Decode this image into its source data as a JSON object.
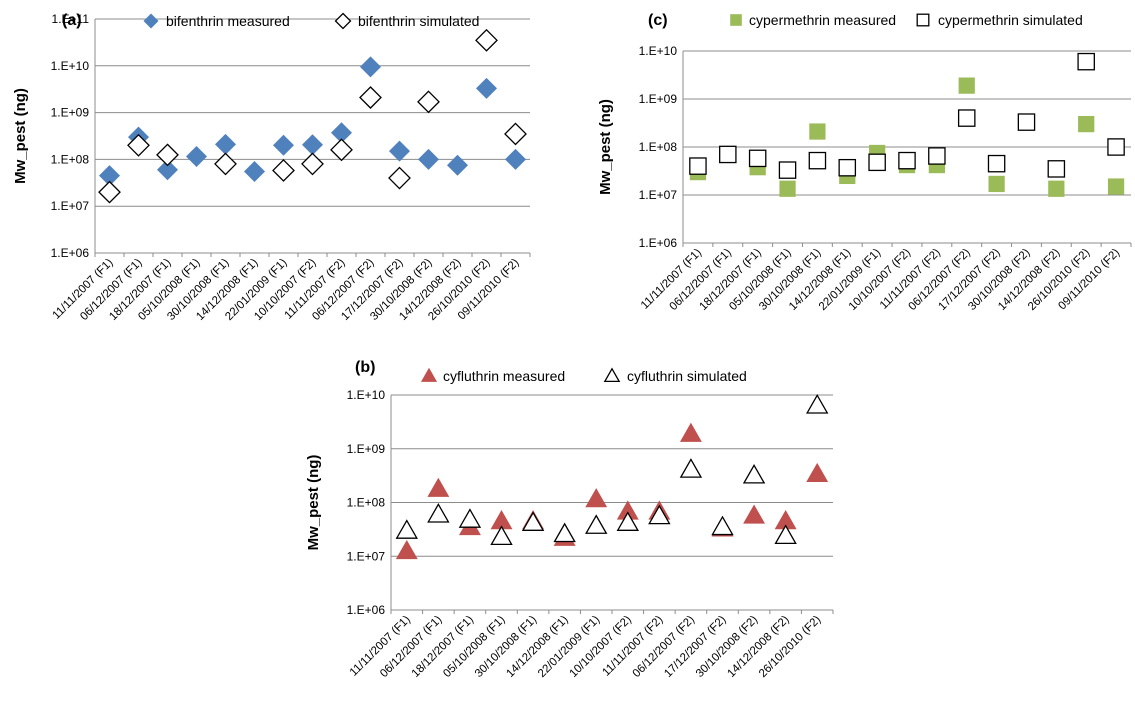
{
  "chart_data": [
    {
      "type": "scatter",
      "panel_label": "(a)",
      "ylabel": "Mw_pest (ng)",
      "yscale": "log",
      "ylim": [
        1000000,
        100000000000
      ],
      "yticks": [
        "1.E+06",
        "1.E+07",
        "1.E+08",
        "1.E+09",
        "1.E+10",
        "1.E+11"
      ],
      "grid": true,
      "legend_position": "top",
      "categories": [
        "11/11/2007 (F1)",
        "06/12/2007 (F1)",
        "18/12/2007 (F1)",
        "05/10/2008 (F1)",
        "30/10/2008 (F1)",
        "14/12/2008 (F1)",
        "22/01/2009 (F1)",
        "10/10/2007 (F2)",
        "11/11/2007 (F2)",
        "06/12/2007 (F2)",
        "17/12/2007 (F2)",
        "30/10/2008 (F2)",
        "14/12/2008 (F2)",
        "26/10/2010 (F2)",
        "09/11/2010 (F2)"
      ],
      "series": [
        {
          "name": "bifenthrin measured",
          "marker": "diamond-filled",
          "color": "#4f81bd",
          "values": [
            45000000,
            300000000,
            60000000,
            115000000,
            210000000,
            55000000,
            200000000,
            205000000,
            370000000,
            9500000000,
            150000000,
            100000000,
            75000000,
            3300000000,
            100000000
          ]
        },
        {
          "name": "bifenthrin simulated",
          "marker": "diamond-open",
          "color": "#000000",
          "values": [
            20000000,
            200000000,
            125000000,
            null,
            80000000,
            null,
            58000000,
            80000000,
            160000000,
            2100000000,
            40000000,
            1700000000,
            null,
            35000000000,
            350000000
          ]
        }
      ]
    },
    {
      "type": "scatter",
      "panel_label": "(c)",
      "ylabel": "Mw_pest (ng)",
      "yscale": "log",
      "ylim": [
        1000000,
        10000000000
      ],
      "yticks": [
        "1.E+06",
        "1.E+07",
        "1.E+08",
        "1.E+09",
        "1.E+10"
      ],
      "grid": true,
      "legend_position": "top",
      "categories": [
        "11/11/2007 (F1)",
        "06/12/2007 (F1)",
        "18/12/2007 (F1)",
        "05/10/2008 (F1)",
        "30/10/2008 (F1)",
        "14/12/2008 (F1)",
        "22/01/2009 (F1)",
        "10/10/2007 (F2)",
        "11/11/2007 (F2)",
        "06/12/2007 (F2)",
        "17/12/2007 (F2)",
        "30/10/2008 (F2)",
        "14/12/2008 (F2)",
        "26/10/2010 (F2)",
        "09/11/2010 (F2)"
      ],
      "series": [
        {
          "name": "cypermethrin measured",
          "marker": "square-filled",
          "color": "#9bbb59",
          "values": [
            30000000,
            70000000,
            38000000,
            13500000,
            210000000,
            25000000,
            75000000,
            42000000,
            42000000,
            1900000000,
            17000000,
            330000000,
            13500000,
            300000000,
            15000000
          ]
        },
        {
          "name": "cypermethrin simulated",
          "marker": "square-open",
          "color": "#000000",
          "values": [
            40000000,
            70000000,
            58000000,
            33000000,
            52000000,
            37000000,
            48000000,
            52000000,
            65000000,
            400000000,
            45000000,
            330000000,
            35000000,
            6000000000,
            100000000
          ]
        }
      ]
    },
    {
      "type": "scatter",
      "panel_label": "(b)",
      "ylabel": "Mw_pest (ng)",
      "yscale": "log",
      "ylim": [
        1000000,
        10000000000
      ],
      "yticks": [
        "1.E+06",
        "1.E+07",
        "1.E+08",
        "1.E+09",
        "1.E+10"
      ],
      "grid": true,
      "legend_position": "top",
      "categories": [
        "11/11/2007 (F1)",
        "06/12/2007 (F1)",
        "18/12/2007 (F1)",
        "05/10/2008 (F1)",
        "30/10/2008 (F1)",
        "14/12/2008 (F1)",
        "22/01/2009 (F1)",
        "10/10/2007 (F2)",
        "11/11/2007 (F2)",
        "06/12/2007 (F2)",
        "17/12/2007 (F2)",
        "30/10/2008 (F2)",
        "14/12/2008 (F2)",
        "26/10/2010 (F2)"
      ],
      "series": [
        {
          "name": "cyfluthrin measured",
          "marker": "triangle-filled",
          "color": "#c0504d",
          "values": [
            12500000,
            180000000,
            35000000,
            45000000,
            45000000,
            22000000,
            115000000,
            68000000,
            68000000,
            1900000000,
            33000000,
            57000000,
            45000000,
            340000000
          ]
        },
        {
          "name": "cyfluthrin simulated",
          "marker": "triangle-open",
          "color": "#000000",
          "values": [
            30000000,
            60000000,
            48000000,
            23000000,
            42000000,
            26000000,
            37000000,
            42000000,
            56000000,
            410000000,
            35000000,
            320000000,
            24000000,
            6400000000
          ]
        }
      ]
    }
  ]
}
